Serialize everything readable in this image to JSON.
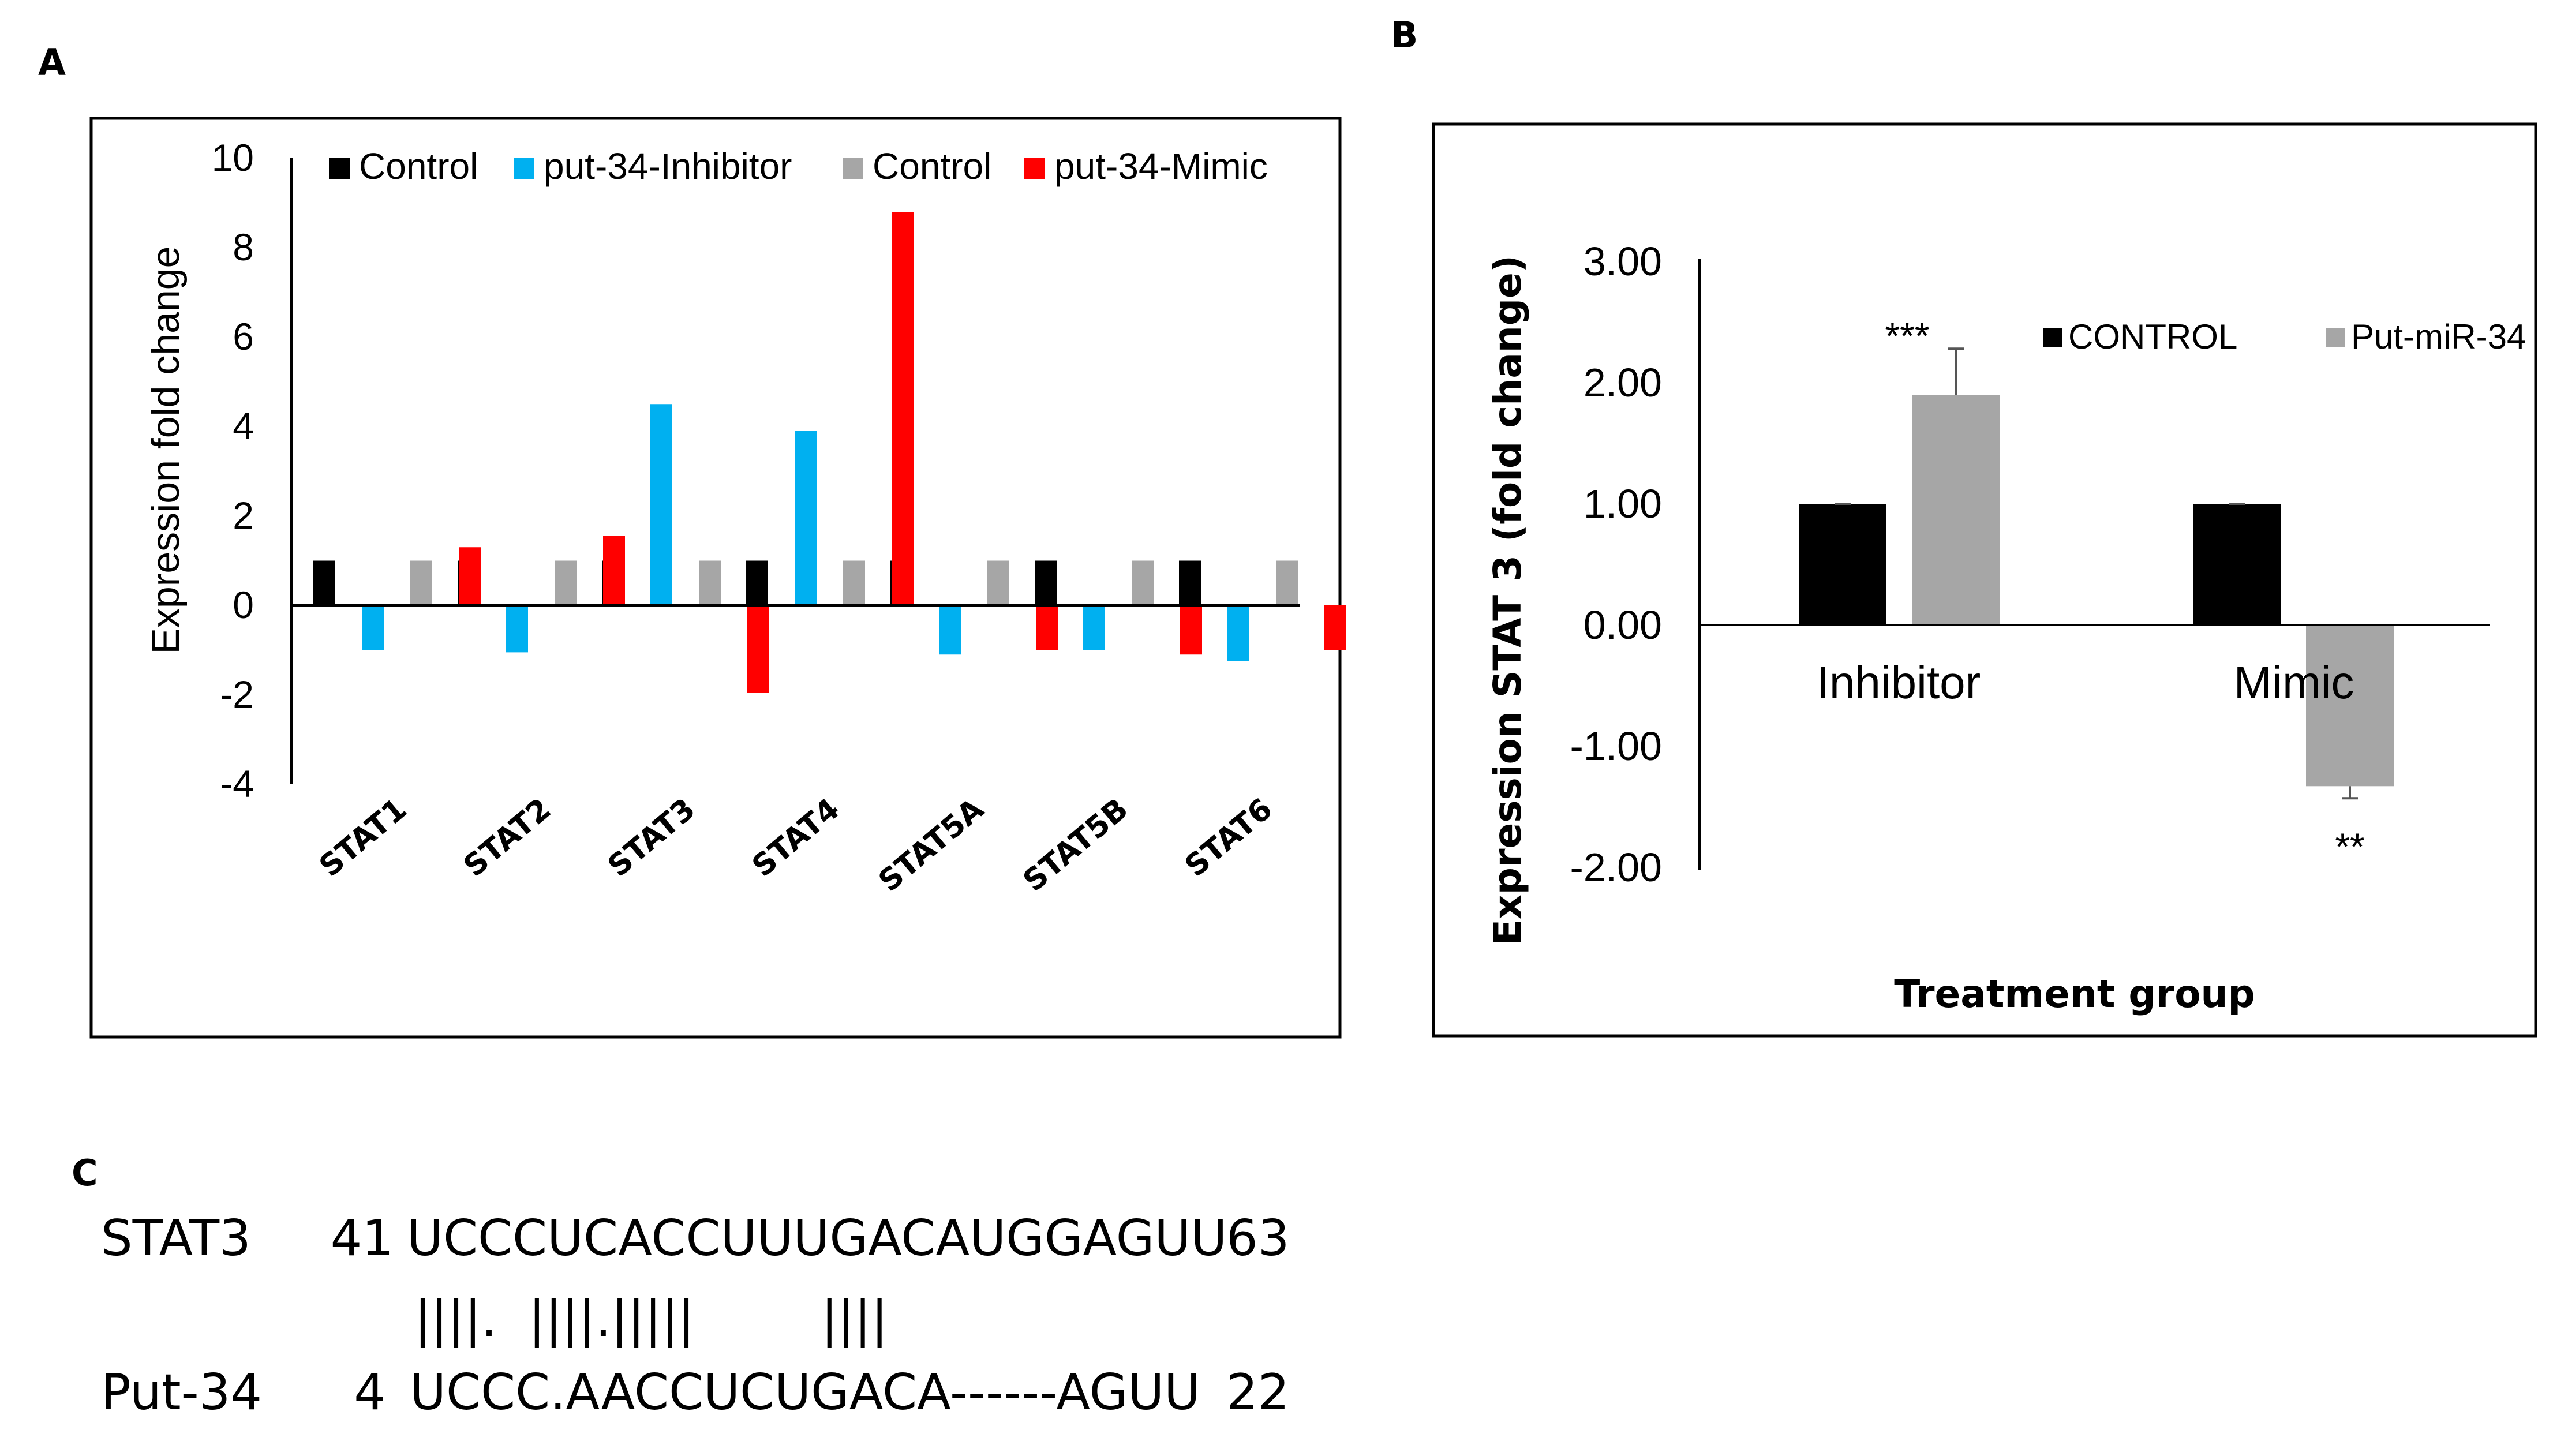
{
  "panels": {
    "a": "A",
    "b": "B",
    "c": "C"
  },
  "chart_data": [
    {
      "panel": "A",
      "type": "bar",
      "title": "",
      "xlabel": "",
      "ylabel": "Expression fold change",
      "ylim": [
        -4,
        10
      ],
      "yticks": [
        "10",
        "8",
        "6",
        "4",
        "2",
        "0",
        "-2",
        "-4"
      ],
      "legend_position": "top",
      "categories": [
        "STAT1",
        "STAT2",
        "STAT3",
        "STAT4",
        "STAT5A",
        "STAT5B",
        "STAT6"
      ],
      "series": [
        {
          "name": "Control",
          "color": "#000000",
          "values": [
            1,
            1,
            1,
            1,
            1,
            1,
            1
          ]
        },
        {
          "name": "put-34-Inhibitor",
          "color": "#00b0f0",
          "values": [
            -1.0,
            -1.05,
            4.5,
            3.9,
            -1.1,
            -1.0,
            -1.25
          ]
        },
        {
          "name": "Control",
          "color": "#a6a6a6",
          "values": [
            1,
            1,
            1,
            1,
            1,
            1,
            1
          ]
        },
        {
          "name": "put-34-Mimic",
          "color": "#ff0000",
          "values": [
            1.3,
            1.55,
            -1.95,
            8.8,
            -1.0,
            -1.1,
            -1.0
          ]
        }
      ]
    },
    {
      "panel": "B",
      "type": "bar",
      "title": "",
      "xlabel": "Treatment group",
      "ylabel": "Expression STAT 3 (fold change)",
      "ylim": [
        -2,
        3
      ],
      "yticks": [
        "3.00",
        "2.00",
        "1.00",
        "0.00",
        "-1.00",
        "-2.00"
      ],
      "legend_position": "top-right",
      "categories": [
        "Inhibitor",
        "Mimic"
      ],
      "series": [
        {
          "name": "CONTROL",
          "color": "#000000",
          "values": [
            1.0,
            1.0
          ],
          "errors": [
            0.0,
            0.0
          ]
        },
        {
          "name": "Put-miR-34",
          "color": "#a6a6a6",
          "values": [
            1.9,
            -1.33
          ],
          "errors": [
            0.38,
            0.1
          ]
        }
      ],
      "annotations": [
        "***",
        "**"
      ]
    }
  ],
  "alignment": {
    "row1_name": "STAT3",
    "row1_start": "41",
    "row1_seq": "UCCCUCACCUUUGACAUGGAGUU",
    "row1_end": "63",
    "pairs": "||||.  ||||.|||||        ||||",
    "row2_name": "Put-34",
    "row2_start": "4",
    "row2_seq": "UCCC.AACCUCUGACA------AGUU",
    "row2_end": "22"
  }
}
